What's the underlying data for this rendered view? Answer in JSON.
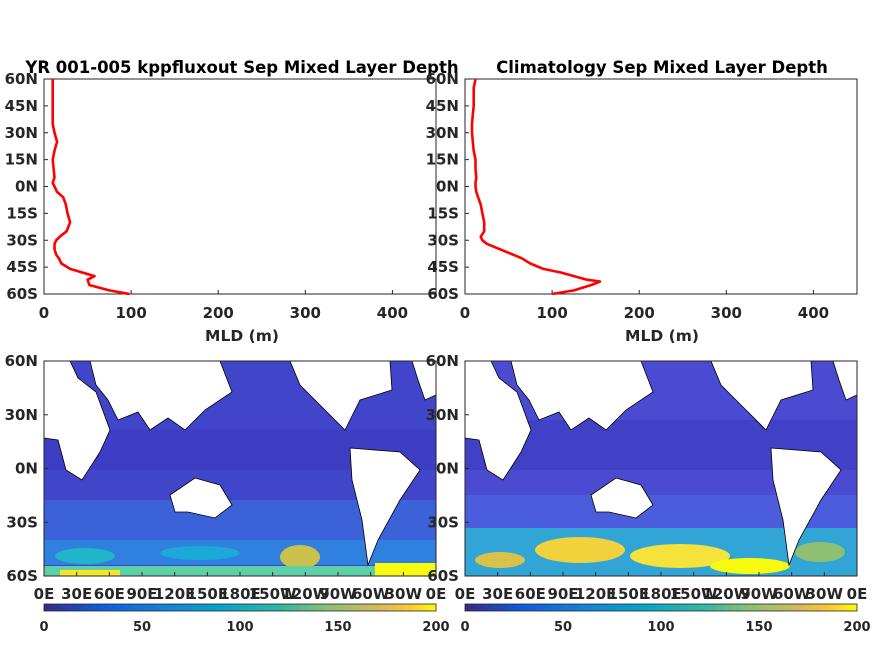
{
  "chart_data": [
    {
      "type": "line",
      "title": "YR 001-005 kppfluxout Sep Mixed Layer Depth",
      "xlabel": "MLD (m)",
      "ylabel": "",
      "xlim": [
        0,
        450
      ],
      "ylim": [
        -60,
        60
      ],
      "xticks": [
        "0",
        "100",
        "200",
        "300",
        "400"
      ],
      "yticks": [
        "60N",
        "45N",
        "30N",
        "15N",
        "0N",
        "15S",
        "30S",
        "45S",
        "60S"
      ],
      "series": [
        {
          "color": "#ff0000",
          "lat": [
            60,
            55,
            50,
            45,
            40,
            35,
            30,
            25,
            20,
            15,
            10,
            5,
            2,
            0,
            -3,
            -6,
            -10,
            -15,
            -20,
            -25,
            -28,
            -30,
            -32,
            -35,
            -38,
            -40,
            -43,
            -46,
            -50,
            -52,
            -55,
            -58,
            -60
          ],
          "mld": [
            10,
            10,
            10,
            10,
            10,
            10,
            12,
            15,
            12,
            10,
            11,
            12,
            10,
            12,
            15,
            22,
            25,
            27,
            30,
            26,
            18,
            14,
            12,
            12,
            14,
            17,
            20,
            30,
            58,
            50,
            52,
            75,
            98
          ]
        }
      ]
    },
    {
      "type": "line",
      "title": "Climatology Sep Mixed Layer Depth",
      "xlabel": "MLD (m)",
      "ylabel": "",
      "xlim": [
        0,
        450
      ],
      "ylim": [
        -60,
        60
      ],
      "xticks": [
        "0",
        "100",
        "200",
        "300",
        "400"
      ],
      "yticks": [
        "60N",
        "45N",
        "30N",
        "15N",
        "0N",
        "15S",
        "30S",
        "45S",
        "60S"
      ],
      "series": [
        {
          "color": "#ff0000",
          "lat": [
            60,
            55,
            50,
            45,
            40,
            35,
            30,
            25,
            20,
            15,
            10,
            5,
            2,
            0,
            -3,
            -6,
            -10,
            -15,
            -20,
            -25,
            -28,
            -30,
            -32,
            -35,
            -38,
            -40,
            -43,
            -46,
            -48,
            -50,
            -52,
            -53,
            -55,
            -58,
            -60
          ],
          "mld": [
            12,
            10,
            10,
            10,
            9,
            8,
            8,
            9,
            10,
            12,
            12,
            13,
            12,
            12,
            13,
            15,
            18,
            20,
            22,
            22,
            18,
            20,
            25,
            40,
            55,
            65,
            75,
            90,
            110,
            125,
            140,
            155,
            145,
            125,
            100
          ]
        }
      ]
    },
    {
      "type": "heatmap",
      "title": "",
      "xticks": [
        "0E",
        "30E",
        "60E",
        "90E",
        "120E",
        "150E",
        "180E",
        "150W",
        "120W",
        "90W",
        "60W",
        "30W",
        "0E"
      ],
      "yticks": [
        "60N",
        "30N",
        "0N",
        "30S",
        "60S"
      ],
      "colorbar": {
        "ticks": [
          "0",
          "50",
          "100",
          "150",
          "200"
        ],
        "range": [
          0,
          200
        ],
        "colormap": "parula"
      }
    },
    {
      "type": "heatmap",
      "title": "",
      "xticks": [
        "0E",
        "30E",
        "60E",
        "90E",
        "120E",
        "150E",
        "180E",
        "150W",
        "120W",
        "90W",
        "60W",
        "30W",
        "0E"
      ],
      "yticks": [
        "60N",
        "30N",
        "0N",
        "30S",
        "60S"
      ],
      "colorbar": {
        "ticks": [
          "0",
          "50",
          "100",
          "150",
          "200"
        ],
        "range": [
          0,
          200
        ],
        "colormap": "parula"
      }
    }
  ],
  "colors": {
    "ocean_low": "#3f3fc8",
    "ocean_mid": "#22a8e0",
    "ocean_high": "#f9fb0e",
    "land": "#ffffff",
    "profile_line": "#ff0000"
  }
}
